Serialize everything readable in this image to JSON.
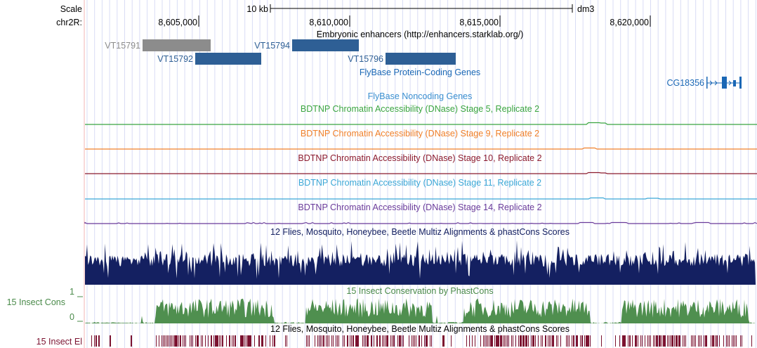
{
  "scale": {
    "label": "Scale",
    "bar_text": "10 kb",
    "assembly": "dm3"
  },
  "chrom_label": "chr2R:",
  "positions": [
    {
      "label": "8,605,000"
    },
    {
      "label": "8,610,000"
    },
    {
      "label": "8,615,000"
    },
    {
      "label": "8,620,000"
    }
  ],
  "tracks": {
    "enhancers": {
      "title": "Embryonic enhancers (http://enhancers.starklab.org/)",
      "features": [
        {
          "name": "VT15791",
          "color": "#8c8c8c"
        },
        {
          "name": "VT15792",
          "color": "#2e5f95"
        },
        {
          "name": "VT15794",
          "color": "#2e5f95"
        },
        {
          "name": "VT15796",
          "color": "#2e5f95"
        }
      ]
    },
    "coding_genes": {
      "title": "FlyBase Protein-Coding Genes",
      "gene": "CG18356",
      "color": "#1a67b5"
    },
    "noncoding_genes": {
      "title": "FlyBase Noncoding Genes",
      "color": "#3a8fd0"
    },
    "dnase": [
      {
        "title": "BDTNP Chromatin Accessibility (DNase) Stage 5, Replicate 2",
        "color": "#3aa540"
      },
      {
        "title": "BDTNP Chromatin Accessibility (DNase) Stage 9, Replicate 2",
        "color": "#f0802a"
      },
      {
        "title": "BDTNP Chromatin Accessibility (DNase) Stage 10, Replicate 2",
        "color": "#8b1a2e"
      },
      {
        "title": "BDTNP Chromatin Accessibility (DNase) Stage 11, Replicate 2",
        "color": "#3ba7d6"
      },
      {
        "title": "BDTNP Chromatin Accessibility (DNase) Stage 14, Replicate 2",
        "color": "#6a3b9a"
      }
    ],
    "multiz": {
      "title": "12 Flies, Mosquito, Honeybee, Beetle Multiz Alignments & phastCons Scores",
      "color": "#142061"
    },
    "cons": {
      "title": "15 Insect Conservation by PhastCons",
      "side_label": "15 Insect Cons",
      "max_label": "1",
      "min_label": "0",
      "color": "#4a8a4a"
    },
    "elements": {
      "title": "12 Flies, Mosquito, Honeybee, Beetle Multiz Alignments & phastCons Scores",
      "side_label": "15 Insect El",
      "color": "#7b1230"
    }
  }
}
